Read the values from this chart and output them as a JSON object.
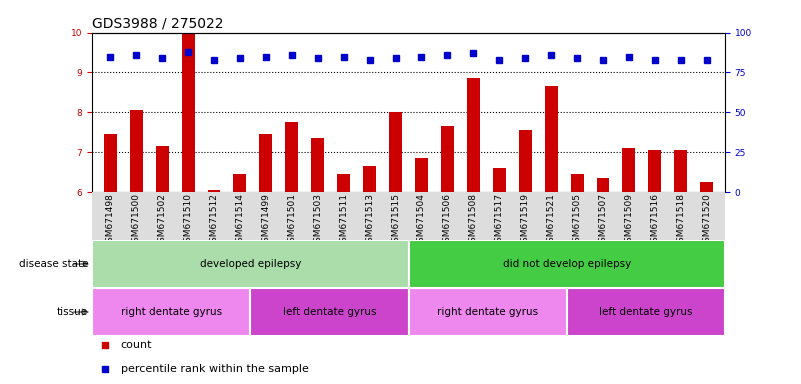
{
  "title": "GDS3988 / 275022",
  "samples": [
    "GSM671498",
    "GSM671500",
    "GSM671502",
    "GSM671510",
    "GSM671512",
    "GSM671514",
    "GSM671499",
    "GSM671501",
    "GSM671503",
    "GSM671511",
    "GSM671513",
    "GSM671515",
    "GSM671504",
    "GSM671506",
    "GSM671508",
    "GSM671517",
    "GSM671519",
    "GSM671521",
    "GSM671505",
    "GSM671507",
    "GSM671509",
    "GSM671516",
    "GSM671518",
    "GSM671520"
  ],
  "bar_values": [
    7.45,
    8.05,
    7.15,
    9.98,
    6.05,
    6.45,
    7.45,
    7.75,
    7.35,
    6.45,
    6.65,
    8.0,
    6.85,
    7.65,
    8.85,
    6.6,
    7.55,
    8.65,
    6.45,
    6.35,
    7.1,
    7.05,
    7.05,
    6.25
  ],
  "dot_percentiles": [
    85,
    86,
    84,
    88,
    83,
    84,
    85,
    86,
    84,
    85,
    83,
    84,
    85,
    86,
    87,
    83,
    84,
    86,
    84,
    83,
    85,
    83,
    83,
    83
  ],
  "bar_color": "#cc0000",
  "dot_color": "#0000cc",
  "ylim_left": [
    6,
    10
  ],
  "ylim_right": [
    0,
    100
  ],
  "yticks_left": [
    6,
    7,
    8,
    9,
    10
  ],
  "yticks_right": [
    0,
    25,
    50,
    75,
    100
  ],
  "hgrid_values": [
    7,
    8,
    9
  ],
  "disease_groups": [
    {
      "label": "developed epilepsy",
      "start": 0,
      "end": 12,
      "color": "#aaddaa"
    },
    {
      "label": "did not develop epilepsy",
      "start": 12,
      "end": 24,
      "color": "#44cc44"
    }
  ],
  "tissue_groups": [
    {
      "label": "right dentate gyrus",
      "start": 0,
      "end": 6,
      "color": "#ee88ee"
    },
    {
      "label": "left dentate gyrus",
      "start": 6,
      "end": 12,
      "color": "#cc44cc"
    },
    {
      "label": "right dentate gyrus",
      "start": 12,
      "end": 18,
      "color": "#ee88ee"
    },
    {
      "label": "left dentate gyrus",
      "start": 18,
      "end": 24,
      "color": "#cc44cc"
    }
  ],
  "legend": [
    {
      "label": "count",
      "color": "#cc0000"
    },
    {
      "label": "percentile rank within the sample",
      "color": "#0000cc"
    }
  ],
  "bar_width": 0.5,
  "title_fontsize": 10,
  "tick_fontsize": 6.5,
  "annot_fontsize": 7.5,
  "legend_fontsize": 8
}
